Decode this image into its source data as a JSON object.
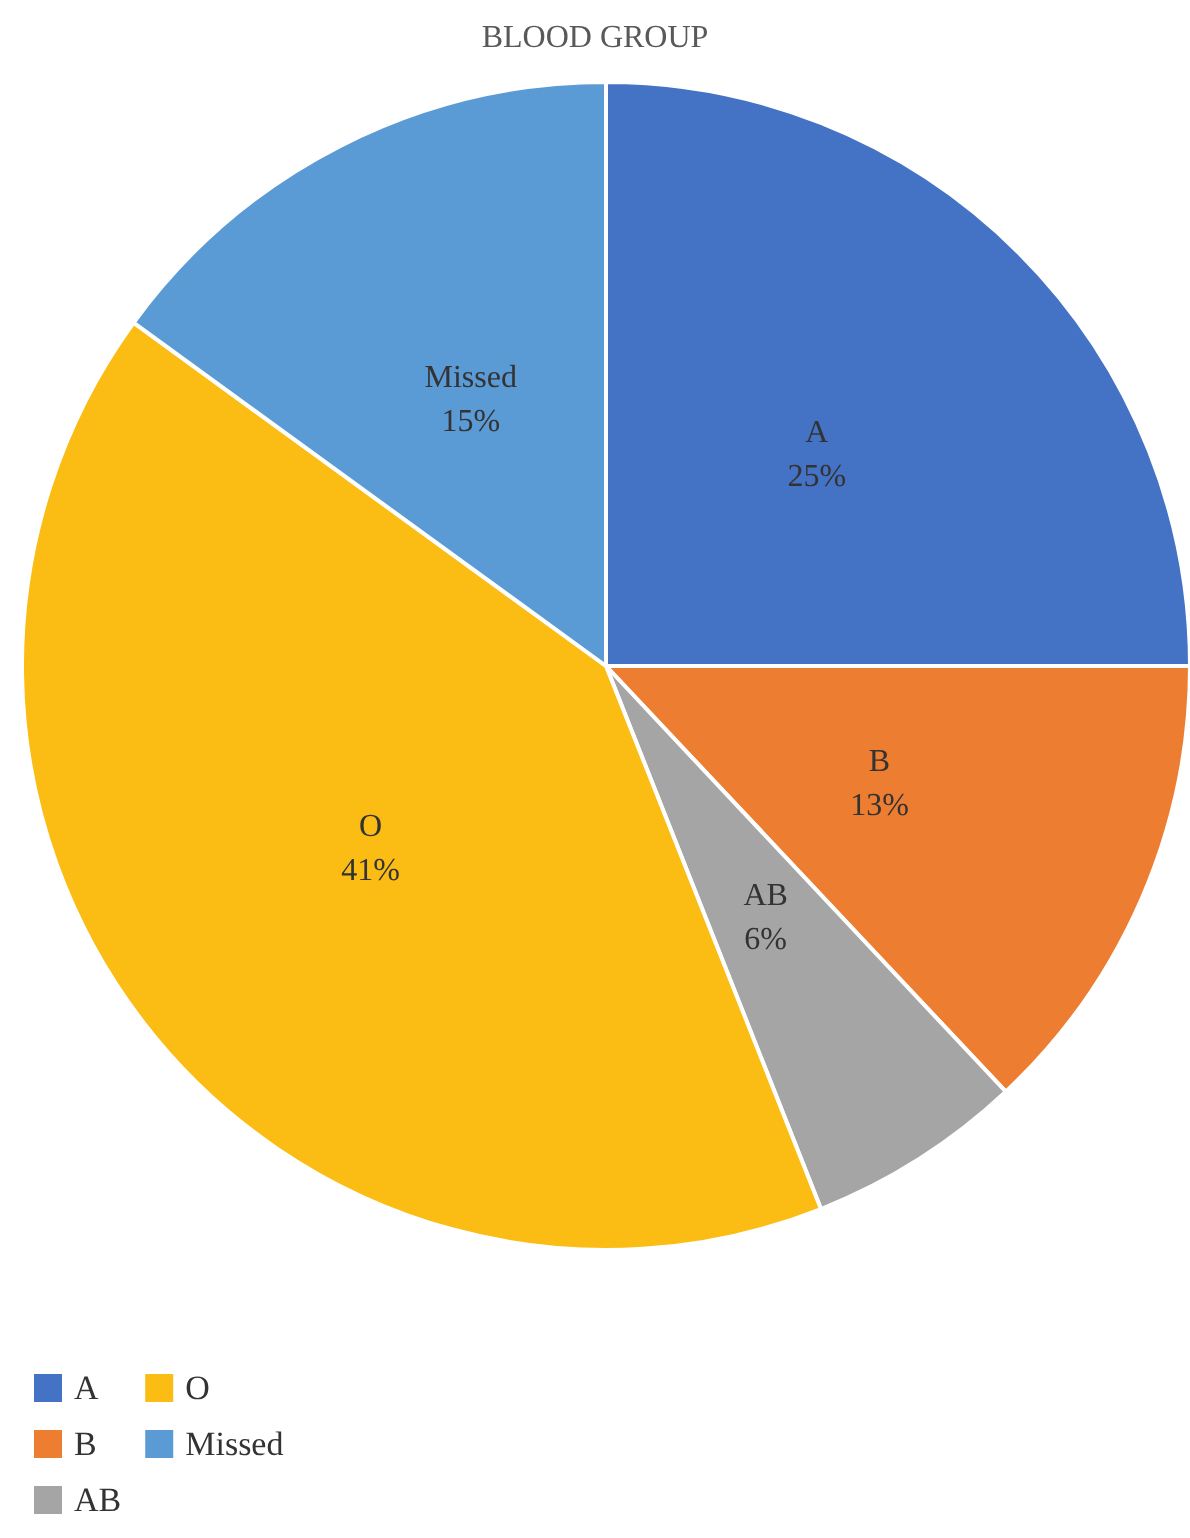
{
  "chart_data": {
    "type": "pie",
    "title": "BLOOD GROUP",
    "categories": [
      "A",
      "B",
      "AB",
      "O",
      "Missed"
    ],
    "values": [
      25,
      13,
      6,
      41,
      15
    ],
    "value_labels": [
      "25%",
      "13%",
      "6%",
      "41%",
      "15%"
    ],
    "colors": [
      "#4472c4",
      "#ed7d31",
      "#a5a5a5",
      "#fbbc13",
      "#5b9bd5"
    ],
    "legend": "bottom"
  }
}
